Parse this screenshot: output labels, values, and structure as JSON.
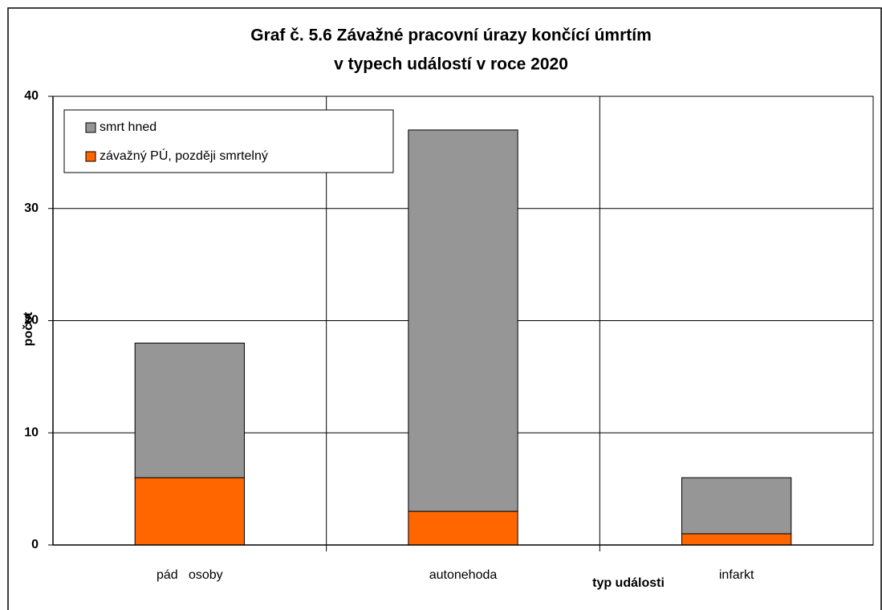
{
  "chart_data": {
    "type": "bar",
    "stacked": true,
    "title": [
      "Graf č. 5.6  Závažné pracovní úrazy končící úmrtím",
      "v typech událostí v roce 2020"
    ],
    "x_label": "typ události",
    "y_label": "počet",
    "categories": [
      "pád   osoby",
      "autonehoda",
      "infarkt"
    ],
    "series": [
      {
        "name": "závažný PÚ, později smrtelný",
        "color": "#ff6600",
        "values": [
          6,
          3,
          1
        ]
      },
      {
        "name": "smrt hned",
        "color": "#969696",
        "values": [
          12,
          34,
          5
        ]
      }
    ],
    "ylim": [
      0,
      40
    ],
    "yticks": [
      0,
      10,
      20,
      30,
      40
    ],
    "grid": true
  }
}
